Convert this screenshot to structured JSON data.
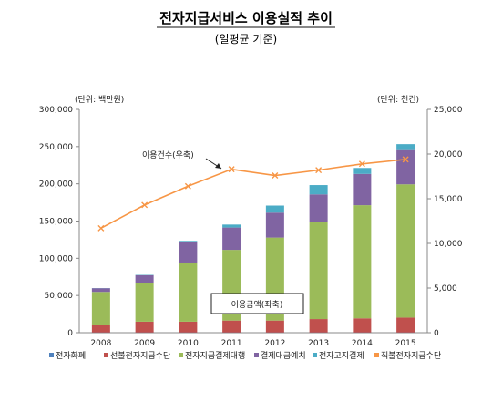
{
  "chart_data": {
    "type": "bar",
    "title": "전자지급서비스 이용실적 추이",
    "subtitle": "(일평균 기준)",
    "y_left_unit": "(단위: 백만원)",
    "y_right_unit": "(단위: 천건)",
    "categories": [
      "2008",
      "2009",
      "2010",
      "2011",
      "2012",
      "2013",
      "2014",
      "2015"
    ],
    "y_left_ticks": [
      "0",
      "50,000",
      "100,000",
      "150,000",
      "200,000",
      "250,000",
      "300,000"
    ],
    "y_right_ticks": [
      "0",
      "5,000",
      "10,000",
      "15,000",
      "20,000",
      "25,000"
    ],
    "ylim_left": [
      0,
      300000
    ],
    "ylim_right": [
      0,
      25000
    ],
    "series": [
      {
        "name": "전자화폐",
        "kind": "bar",
        "axis": "left",
        "color": "#4f81bd",
        "values": [
          300,
          300,
          300,
          300,
          300,
          300,
          300,
          300
        ]
      },
      {
        "name": "선불전자지급수단",
        "kind": "bar",
        "axis": "left",
        "color": "#c0504d",
        "values": [
          10500,
          14500,
          14500,
          16000,
          16000,
          18000,
          19000,
          20000
        ]
      },
      {
        "name": "전자지급결제대행",
        "kind": "bar",
        "axis": "left",
        "color": "#9bbb59",
        "values": [
          44000,
          52500,
          79500,
          95000,
          111500,
          130500,
          152000,
          179000
        ]
      },
      {
        "name": "결제대금예치",
        "kind": "bar",
        "axis": "left",
        "color": "#8064a2",
        "values": [
          5000,
          10000,
          27500,
          30000,
          33500,
          37000,
          42000,
          46000
        ]
      },
      {
        "name": "전자고지결제",
        "kind": "bar",
        "axis": "left",
        "color": "#4bacc6",
        "values": [
          200,
          500,
          1500,
          4000,
          9500,
          12500,
          8000,
          8000
        ]
      },
      {
        "name": "직불전자지급수단",
        "kind": "line",
        "axis": "right",
        "color": "#f79646",
        "values": [
          11700,
          14300,
          16400,
          18300,
          17600,
          18200,
          18900,
          19400
        ]
      }
    ],
    "annotations": {
      "line_label": "이용건수(우축)",
      "bar_label": "이용금액(좌축)"
    },
    "grid": false,
    "legend_position": "bottom"
  }
}
